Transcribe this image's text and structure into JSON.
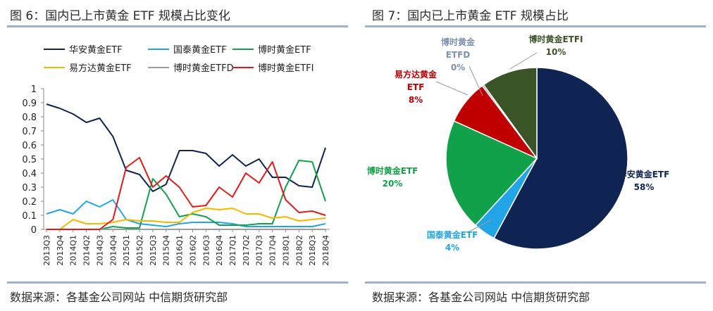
{
  "left": {
    "title": "图 6：国内已上市黄金 ETF 规模占比变化",
    "source": "数据来源：各基金公司网站 中信期货研究部"
  },
  "right": {
    "title": "图 7：国内已上市黄金 ETF 规模占比",
    "source": "数据来源：各基金公司网站 中信期货研究部"
  },
  "colors": {
    "huaan": "#0f2452",
    "guotai": "#22a5e6",
    "boshi": "#11a14a",
    "yifangda": "#f5b800",
    "boshi_etfd": "#9e9e9e",
    "boshi_etfi": "#e11a1a",
    "rule": "#9fb2c7",
    "pie_etfi": "#3a5327"
  },
  "chart_data": [
    {
      "type": "line",
      "categories": [
        "2013Q3",
        "2013Q4",
        "2014Q1",
        "2014Q2",
        "2014Q3",
        "2014Q4",
        "2015Q1",
        "2015Q2",
        "2015Q3",
        "2015Q4",
        "2016Q1",
        "2016Q2",
        "2016Q3",
        "2016Q4",
        "2017Q1",
        "2017Q2",
        "2017Q3",
        "2017Q4",
        "2018Q1",
        "2018Q2",
        "2018Q3",
        "2018Q4"
      ],
      "ylim": [
        0,
        1
      ],
      "yticks": [
        "0",
        "0.1",
        "0.2",
        "0.3",
        "0.4",
        "0.5",
        "0.6",
        "0.7",
        "0.8",
        "0.9",
        "1"
      ],
      "legend_position": "top",
      "grid": false,
      "series": [
        {
          "name": "华安黄金ETF",
          "color": "#0f2452",
          "values": [
            0.89,
            0.86,
            0.82,
            0.76,
            0.79,
            0.66,
            0.42,
            0.39,
            0.27,
            0.32,
            0.56,
            0.56,
            0.54,
            0.45,
            0.53,
            0.45,
            0.5,
            0.37,
            0.37,
            0.31,
            0.3,
            0.58
          ]
        },
        {
          "name": "国泰黄金ETF",
          "color": "#22a5e6",
          "values": [
            0.11,
            0.14,
            0.11,
            0.2,
            0.16,
            0.21,
            0.07,
            0.04,
            0.03,
            0.02,
            0.04,
            0.05,
            0.05,
            0.05,
            0.04,
            0.02,
            0.02,
            0.02,
            0.02,
            0.02,
            0.02,
            0.04
          ]
        },
        {
          "name": "博时黄金ETF",
          "color": "#11a14a",
          "values": [
            0.0,
            0.0,
            0.0,
            0.0,
            0.0,
            0.02,
            0.01,
            0.01,
            0.36,
            0.25,
            0.09,
            0.11,
            0.09,
            0.03,
            0.03,
            0.03,
            0.04,
            0.04,
            0.3,
            0.49,
            0.48,
            0.2
          ]
        },
        {
          "name": "易方达黄金ETF",
          "color": "#f5b800",
          "values": [
            0.0,
            0.0,
            0.07,
            0.04,
            0.04,
            0.05,
            0.07,
            0.06,
            0.06,
            0.05,
            0.05,
            0.12,
            0.15,
            0.14,
            0.15,
            0.11,
            0.11,
            0.08,
            0.09,
            0.06,
            0.07,
            0.08
          ]
        },
        {
          "name": "博时黄金ETFD",
          "color": "#9e9e9e",
          "values": [
            0.0,
            0.0,
            0.0,
            0.0,
            0.0,
            0.0,
            0.0,
            0.0,
            0.0,
            0.0,
            0.0,
            0.0,
            0.0,
            0.0,
            0.0,
            0.0,
            0.0,
            0.0,
            0.0,
            0.0,
            0.0,
            0.0
          ]
        },
        {
          "name": "博时黄金ETFI",
          "color": "#e11a1a",
          "values": [
            0.0,
            0.0,
            0.0,
            0.0,
            0.0,
            0.07,
            0.44,
            0.51,
            0.3,
            0.38,
            0.3,
            0.16,
            0.17,
            0.3,
            0.23,
            0.4,
            0.33,
            0.48,
            0.21,
            0.12,
            0.13,
            0.1
          ]
        }
      ]
    },
    {
      "type": "pie",
      "slices": [
        {
          "name": "华安黄金ETF",
          "label_line1": "华安黄金ETF",
          "pct_label": "58%",
          "value": 58,
          "color": "#0f2452"
        },
        {
          "name": "国泰黄金ETF",
          "label_line1": "国泰黄金ETF",
          "pct_label": "4%",
          "value": 4,
          "color": "#22a5e6"
        },
        {
          "name": "博时黄金ETF",
          "label_line1": "博时黄金ETF",
          "pct_label": "20%",
          "value": 20,
          "color": "#11a14a"
        },
        {
          "name": "易方达黄金ETF",
          "label_line1": "易方达黄金",
          "label_line2": "ETF",
          "pct_label": "8%",
          "value": 8,
          "color": "#c00000"
        },
        {
          "name": "博时黄金ETFD",
          "label_line1": "博时黄金",
          "label_line2": "ETFD",
          "pct_label": "0%",
          "value": 0.3,
          "color": "#7f8fb0"
        },
        {
          "name": "博时黄金ETFI",
          "label_line1": "博时黄金ETFI",
          "pct_label": "10%",
          "value": 10,
          "color": "#3a5327"
        }
      ]
    }
  ]
}
